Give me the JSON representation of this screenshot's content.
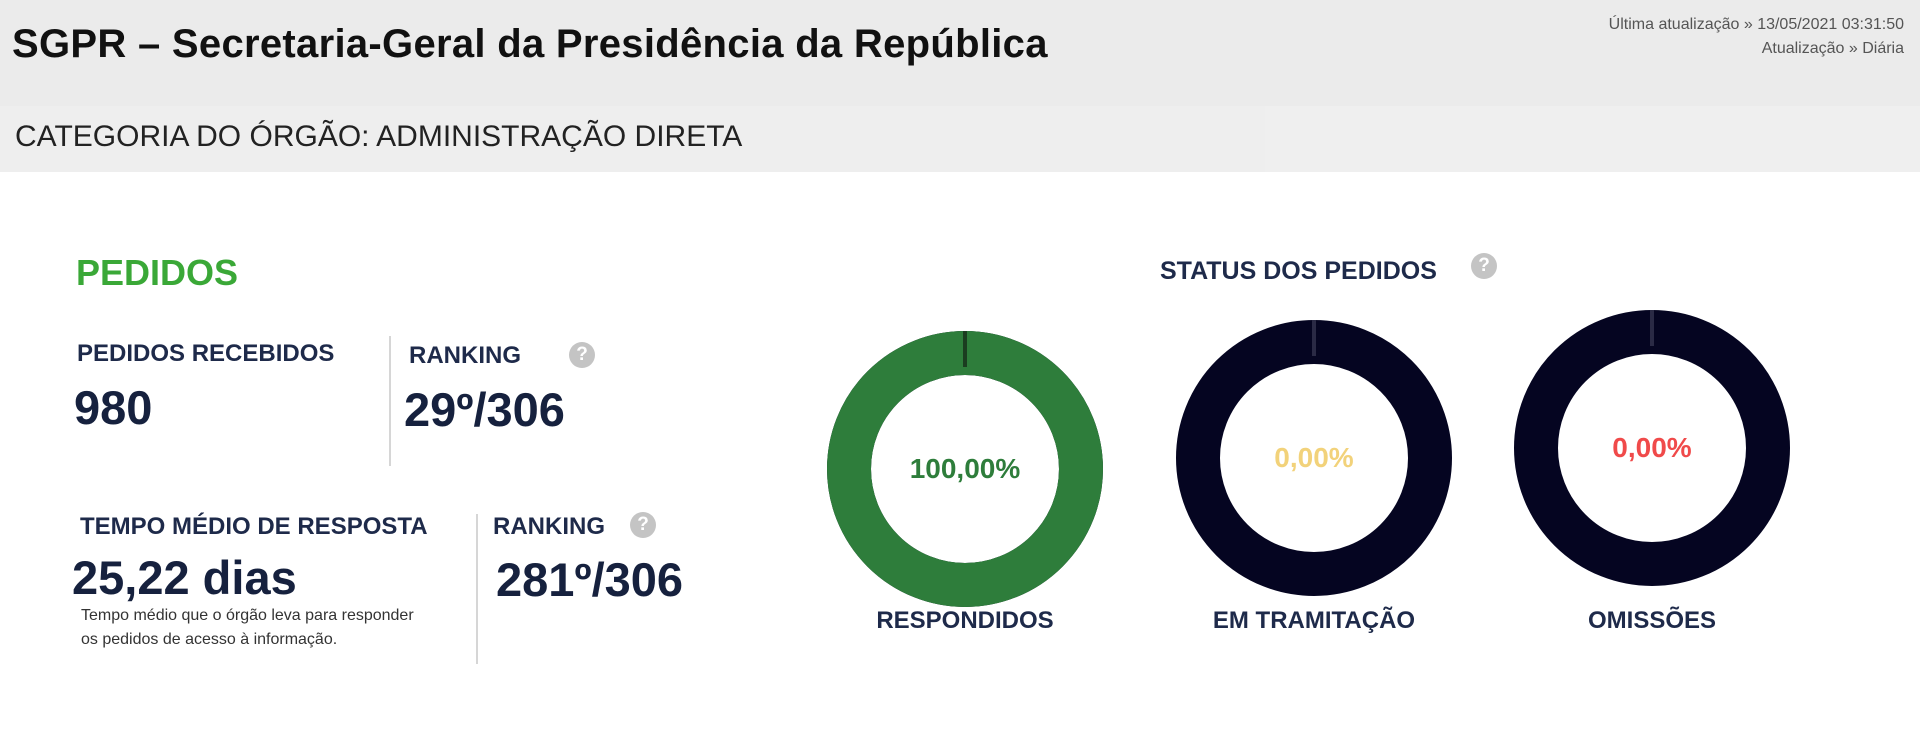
{
  "header": {
    "title": "SGPR – Secretaria-Geral da Presidência da República",
    "last_update": "Última atualização » 13/05/2021 03:31:50",
    "update_frequency": "Atualização » Diária"
  },
  "category": "CATEGORIA DO ÓRGÃO: ADMINISTRAÇÃO DIRETA",
  "pedidos": {
    "section_title": "PEDIDOS",
    "recebidos_label": "PEDIDOS RECEBIDOS",
    "recebidos_value": "980",
    "ranking_label": "RANKING",
    "ranking_value": "29º/306",
    "tempo_label": "TEMPO MÉDIO DE RESPOSTA",
    "tempo_value": "25,22 dias",
    "tempo_note": "Tempo médio que o órgão leva para responder os pedidos de acesso à informação.",
    "tempo_ranking_label": "RANKING",
    "tempo_ranking_value": "281º/306",
    "help_glyph": "?"
  },
  "status": {
    "title": "STATUS DOS PEDIDOS",
    "help_glyph": "?",
    "items": [
      {
        "caption": "RESPONDIDOS",
        "value_text": "100,00%",
        "fraction": 1.0,
        "ring_color": "#2e7d3b",
        "text_color": "#2e7d3b",
        "marker_color": "#1b3d20"
      },
      {
        "caption": "EM TRAMITAÇÃO",
        "value_text": "0,00%",
        "fraction": 0.0,
        "ring_color": "#050521",
        "text_color": "#f2d27a",
        "marker_color": "#2a2a45"
      },
      {
        "caption": "OMISSÕES",
        "value_text": "0,00%",
        "fraction": 0.0,
        "ring_color": "#050521",
        "text_color": "#f04a4a",
        "marker_color": "#2a2a45"
      }
    ]
  },
  "colors": {
    "accent_green": "#3aa837",
    "donut_empty": "#050521",
    "label_navy": "#1e2a4a"
  },
  "icons": {
    "help": "question-circle-icon"
  }
}
